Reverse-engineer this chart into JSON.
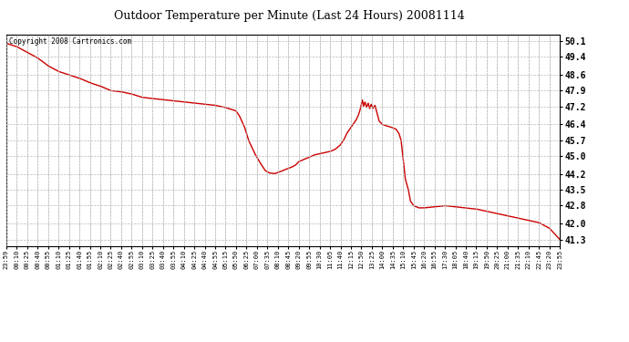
{
  "title": "Outdoor Temperature per Minute (Last 24 Hours) 20081114",
  "copyright_text": "Copyright 2008 Cartronics.com",
  "line_color": "#cc0000",
  "background_color": "#ffffff",
  "grid_color": "#bbbbbb",
  "yticks": [
    41.3,
    42.0,
    42.8,
    43.5,
    44.2,
    45.0,
    45.7,
    46.4,
    47.2,
    47.9,
    48.6,
    49.4,
    50.1
  ],
  "ylim": [
    41.0,
    50.4
  ],
  "xtick_labels": [
    "23:59",
    "00:10",
    "00:25",
    "00:40",
    "00:55",
    "01:10",
    "01:25",
    "01:40",
    "01:55",
    "02:10",
    "02:25",
    "02:40",
    "02:55",
    "03:10",
    "03:25",
    "03:40",
    "03:55",
    "04:10",
    "04:25",
    "04:40",
    "04:55",
    "05:15",
    "05:50",
    "06:25",
    "07:00",
    "07:35",
    "08:10",
    "08:45",
    "09:20",
    "09:55",
    "10:30",
    "11:05",
    "11:40",
    "12:15",
    "12:50",
    "13:25",
    "14:00",
    "14:35",
    "15:10",
    "15:45",
    "16:20",
    "16:55",
    "17:30",
    "18:05",
    "18:40",
    "19:15",
    "19:50",
    "20:25",
    "21:00",
    "21:35",
    "22:10",
    "22:45",
    "23:20",
    "23:55"
  ],
  "key_points_x": [
    0,
    1,
    2,
    3,
    4,
    5,
    6,
    7,
    8,
    9,
    10,
    11,
    12,
    13,
    14,
    15,
    16,
    17,
    18,
    19,
    20,
    20.5,
    21,
    21.3,
    21.7,
    22,
    22.3,
    22.8,
    23.2,
    23.8,
    24.3,
    24.8,
    25.2,
    25.7,
    26.2,
    26.7,
    27,
    27.3,
    27.7,
    28,
    28.5,
    29,
    29.5,
    30,
    30.5,
    31,
    31.5,
    32,
    32.3,
    32.6,
    32.9,
    33.2,
    33.5,
    33.7,
    33.85,
    34,
    34.1,
    34.2,
    34.35,
    34.5,
    34.65,
    34.8,
    34.95,
    35.1,
    35.3,
    35.5,
    35.7,
    36,
    36.3,
    36.7,
    37,
    37.3,
    37.6,
    37.8,
    38,
    38.2,
    38.5,
    38.7,
    39,
    39.5,
    40,
    41,
    42,
    43,
    44,
    45,
    46,
    47,
    48,
    49,
    50,
    51,
    52,
    53
  ],
  "key_points_y": [
    50.0,
    49.85,
    49.6,
    49.35,
    49.0,
    48.75,
    48.6,
    48.45,
    48.25,
    48.1,
    47.9,
    47.85,
    47.75,
    47.6,
    47.55,
    47.5,
    47.45,
    47.4,
    47.35,
    47.3,
    47.25,
    47.2,
    47.15,
    47.1,
    47.05,
    47.0,
    46.8,
    46.3,
    45.7,
    45.1,
    44.7,
    44.35,
    44.25,
    44.22,
    44.3,
    44.4,
    44.45,
    44.5,
    44.6,
    44.75,
    44.85,
    44.95,
    45.05,
    45.1,
    45.15,
    45.2,
    45.3,
    45.5,
    45.7,
    46.0,
    46.2,
    46.4,
    46.6,
    46.8,
    47.0,
    47.3,
    47.5,
    47.2,
    47.4,
    47.15,
    47.35,
    47.1,
    47.3,
    47.1,
    47.25,
    46.9,
    46.55,
    46.4,
    46.35,
    46.3,
    46.25,
    46.2,
    46.0,
    45.7,
    44.9,
    44.0,
    43.5,
    43.0,
    42.8,
    42.7,
    42.7,
    42.75,
    42.8,
    42.75,
    42.7,
    42.65,
    42.55,
    42.45,
    42.35,
    42.25,
    42.15,
    42.05,
    41.8,
    41.3
  ]
}
